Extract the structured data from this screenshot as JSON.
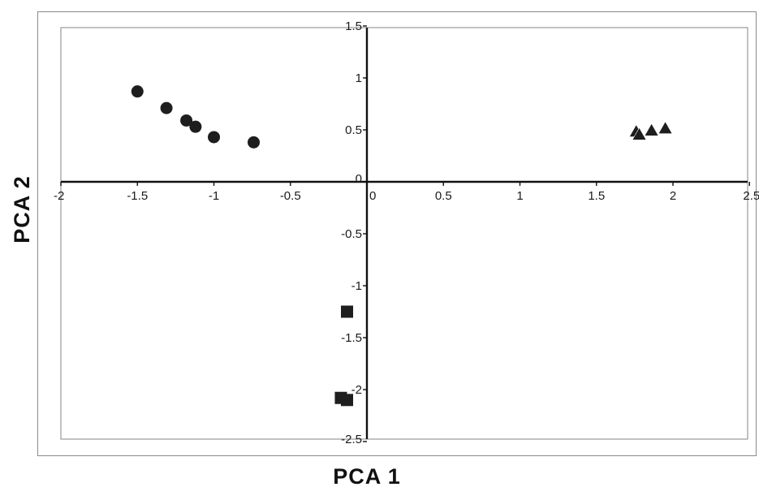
{
  "chart_data": {
    "type": "scatter",
    "title": "",
    "xlabel": "PCA 1",
    "ylabel": "PCA 2",
    "xlim": [
      -2,
      2.5
    ],
    "ylim": [
      -2.5,
      1.5
    ],
    "grid": false,
    "x_ticks": [
      -2,
      -1.5,
      -1,
      -0.5,
      0,
      0.5,
      1,
      1.5,
      2,
      2.5
    ],
    "y_ticks": [
      1.5,
      1,
      0.5,
      0,
      -0.5,
      -1,
      -1.5,
      -2,
      -2.5
    ],
    "series": [
      {
        "marker": "circle",
        "color": "#1e1e1e",
        "points": [
          {
            "x": -1.5,
            "y": 0.87
          },
          {
            "x": -1.31,
            "y": 0.71
          },
          {
            "x": -1.18,
            "y": 0.59
          },
          {
            "x": -1.12,
            "y": 0.53
          },
          {
            "x": -1.0,
            "y": 0.43
          },
          {
            "x": -0.74,
            "y": 0.38
          }
        ]
      },
      {
        "marker": "triangle",
        "color": "#1e1e1e",
        "points": [
          {
            "x": 1.76,
            "y": 0.48
          },
          {
            "x": 1.78,
            "y": 0.45
          },
          {
            "x": 1.86,
            "y": 0.49
          },
          {
            "x": 1.95,
            "y": 0.51
          }
        ]
      },
      {
        "marker": "square",
        "color": "#1e1e1e",
        "points": [
          {
            "x": -0.13,
            "y": -1.25
          },
          {
            "x": -0.17,
            "y": -2.08
          },
          {
            "x": -0.13,
            "y": -2.1
          }
        ]
      }
    ]
  }
}
